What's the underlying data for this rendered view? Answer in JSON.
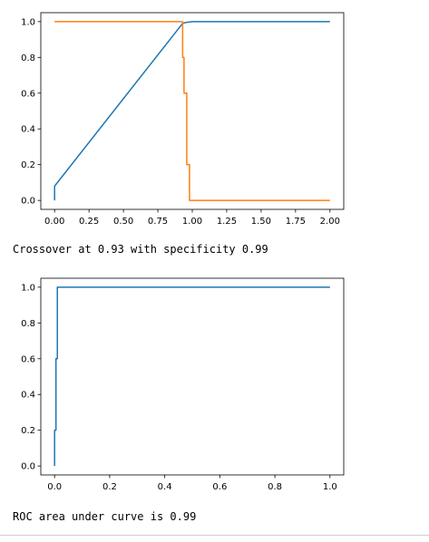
{
  "outputs": {
    "crossover_text": "Crossover at 0.93 with specificity 0.99",
    "roc_text": "ROC area under curve is 0.99"
  },
  "colors": {
    "series_blue": "#1f77b4",
    "series_orange": "#ff7f0e"
  },
  "chart_data": [
    {
      "type": "line",
      "title": "",
      "xlabel": "",
      "ylabel": "",
      "xlim": [
        -0.1,
        2.1
      ],
      "ylim": [
        -0.05,
        1.05
      ],
      "xticks": [
        0.0,
        0.25,
        0.5,
        0.75,
        1.0,
        1.25,
        1.5,
        1.75,
        2.0
      ],
      "xtick_labels": [
        "0.00",
        "0.25",
        "0.50",
        "0.75",
        "1.00",
        "1.25",
        "1.50",
        "1.75",
        "2.00"
      ],
      "yticks": [
        0.0,
        0.2,
        0.4,
        0.6,
        0.8,
        1.0
      ],
      "ytick_labels": [
        "0.0",
        "0.2",
        "0.4",
        "0.6",
        "0.8",
        "1.0"
      ],
      "grid": false,
      "legend": "none",
      "series": [
        {
          "color": "#1f77b4",
          "x": [
            0.0,
            0.0,
            0.93,
            0.95,
            1.0,
            2.0
          ],
          "y": [
            0.0,
            0.08,
            0.99,
            0.995,
            1.0,
            1.0
          ]
        },
        {
          "color": "#ff7f0e",
          "x": [
            0.0,
            0.93,
            0.93,
            0.94,
            0.94,
            0.96,
            0.96,
            0.98,
            0.98,
            1.0,
            2.0
          ],
          "y": [
            1.0,
            1.0,
            0.8,
            0.8,
            0.6,
            0.6,
            0.2,
            0.2,
            0.0,
            0.0,
            0.0
          ]
        }
      ]
    },
    {
      "type": "line",
      "title": "",
      "xlabel": "",
      "ylabel": "",
      "xlim": [
        -0.05,
        1.05
      ],
      "ylim": [
        -0.05,
        1.05
      ],
      "xticks": [
        0.0,
        0.2,
        0.4,
        0.6,
        0.8,
        1.0
      ],
      "xtick_labels": [
        "0.0",
        "0.2",
        "0.4",
        "0.6",
        "0.8",
        "1.0"
      ],
      "yticks": [
        0.0,
        0.2,
        0.4,
        0.6,
        0.8,
        1.0
      ],
      "ytick_labels": [
        "0.0",
        "0.2",
        "0.4",
        "0.6",
        "0.8",
        "1.0"
      ],
      "grid": false,
      "legend": "none",
      "series": [
        {
          "color": "#1f77b4",
          "x": [
            0.0,
            0.0,
            0.005,
            0.005,
            0.01,
            0.01,
            1.0
          ],
          "y": [
            0.0,
            0.2,
            0.2,
            0.6,
            0.6,
            1.0,
            1.0
          ]
        }
      ]
    }
  ]
}
